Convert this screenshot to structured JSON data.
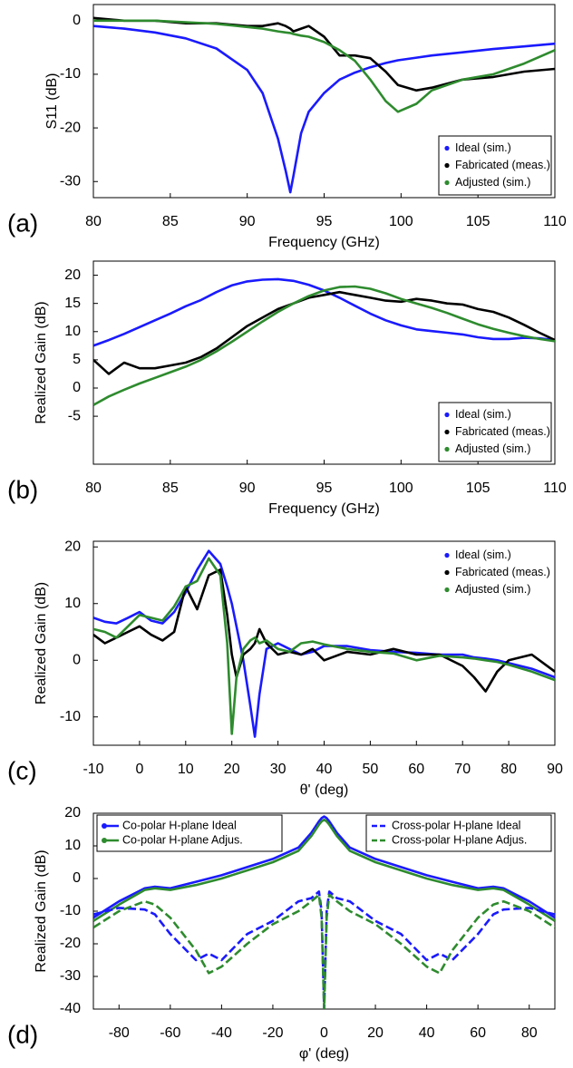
{
  "chart_data": [
    {
      "type": "line",
      "label": "(a)",
      "xlabel": "Frequency (GHz)",
      "ylabel": "S11 (dB)",
      "xlim": [
        80,
        110
      ],
      "xticks": [
        80,
        85,
        90,
        95,
        100,
        105,
        110
      ],
      "ylim": [
        -33,
        3
      ],
      "yticks": [
        0,
        -10,
        -20,
        -30
      ],
      "legend": "lower right",
      "legend_box": true,
      "x": [
        80,
        82,
        84,
        86,
        88,
        90,
        91,
        92,
        92.5,
        92.8,
        93,
        93.5,
        94,
        95,
        96,
        97,
        98,
        99,
        99.8,
        101,
        102,
        104,
        106,
        108,
        110
      ],
      "series": [
        {
          "name": "Ideal (sim.)",
          "color": "#1a1aff",
          "values": [
            -1,
            -1.5,
            -2.2,
            -3.3,
            -5.2,
            -9.2,
            -13.5,
            -22,
            -28,
            -32,
            -29,
            -21,
            -17,
            -13.5,
            -11,
            -9.7,
            -8.7,
            -7.9,
            -7.4,
            -6.9,
            -6.5,
            -5.9,
            -5.3,
            -4.8,
            -4.3
          ]
        },
        {
          "name": "Fabricated (meas.)",
          "color": "#000000",
          "values": [
            0.5,
            0,
            0,
            -0.5,
            -0.5,
            -1,
            -1,
            -0.5,
            -1,
            -1.5,
            -2,
            -1.5,
            -1,
            -3,
            -6.5,
            -6.5,
            -7,
            -9.5,
            -12,
            -13,
            -12.5,
            -11,
            -10.5,
            -9.5,
            -9
          ]
        },
        {
          "name": "Adjusted (sim.)",
          "color": "#2e8b2e",
          "values": [
            0,
            0,
            0,
            -0.3,
            -0.6,
            -1.2,
            -1.5,
            -2,
            -2.2,
            -2.3,
            -2.5,
            -2.8,
            -3,
            -4,
            -5.5,
            -7.5,
            -11,
            -15,
            -17,
            -15.5,
            -13,
            -11,
            -10,
            -8,
            -5.5
          ]
        }
      ]
    },
    {
      "type": "line",
      "label": "(b)",
      "xlabel": "Frequency (GHz)",
      "ylabel": "Realized Gain (dB)",
      "xlim": [
        80,
        110
      ],
      "xticks": [
        80,
        85,
        90,
        95,
        100,
        105,
        110
      ],
      "ylim": [
        -13.5,
        22.5
      ],
      "yticks": [
        20,
        15,
        10,
        5,
        0,
        -5
      ],
      "legend": "lower right",
      "legend_box": true,
      "x": [
        80,
        81,
        82,
        83,
        84,
        85,
        86,
        87,
        88,
        89,
        90,
        91,
        92,
        93,
        94,
        95,
        96,
        97,
        98,
        99,
        100,
        101,
        102,
        103,
        104,
        105,
        106,
        107,
        108,
        109,
        110
      ],
      "series": [
        {
          "name": "Ideal (sim.)",
          "color": "#1a1aff",
          "values": [
            7.5,
            8.5,
            9.6,
            10.8,
            12,
            13.2,
            14.5,
            15.6,
            17,
            18.2,
            18.9,
            19.2,
            19.3,
            19,
            18.3,
            17.3,
            16,
            14.6,
            13.2,
            12,
            11.1,
            10.4,
            10.1,
            9.8,
            9.5,
            9,
            8.7,
            8.7,
            8.9,
            8.8,
            8.5
          ]
        },
        {
          "name": "Fabricated (meas.)",
          "color": "#000000",
          "values": [
            5,
            2.5,
            4.5,
            3.5,
            3.5,
            4,
            4.5,
            5.5,
            7,
            9,
            11,
            12.5,
            14,
            15,
            16,
            16.5,
            17,
            16.5,
            16,
            15.5,
            15.3,
            15.8,
            15.5,
            15,
            14.8,
            14,
            13.5,
            12.5,
            11.2,
            9.8,
            8.5
          ]
        },
        {
          "name": "Adjusted (sim.)",
          "color": "#2e8b2e",
          "values": [
            -3,
            -1.5,
            -0.3,
            0.8,
            1.8,
            2.8,
            3.8,
            5,
            6.5,
            8.2,
            10,
            11.8,
            13.5,
            15,
            16.3,
            17.3,
            17.9,
            18,
            17.6,
            16.8,
            15.8,
            15,
            14.2,
            13.3,
            12.3,
            11.3,
            10.5,
            9.8,
            9.2,
            8.7,
            8.3
          ]
        }
      ]
    },
    {
      "type": "line",
      "label": "(c)",
      "xlabel": "θ' (deg)",
      "ylabel": "Realized Gain (dB)",
      "xlim": [
        -10,
        90
      ],
      "xticks": [
        -10,
        0,
        10,
        20,
        30,
        40,
        50,
        60,
        70,
        80,
        90
      ],
      "ylim": [
        -15,
        21
      ],
      "yticks": [
        20,
        10,
        0,
        -10
      ],
      "legend": "upper right",
      "legend_box": false,
      "x": [
        -10,
        -7.5,
        -5,
        -2.5,
        0,
        2.5,
        5,
        7.5,
        10,
        12.5,
        15,
        17.5,
        19,
        20,
        21,
        22.5,
        24,
        25,
        26,
        27.5,
        30,
        32.5,
        35,
        37.5,
        40,
        45,
        50,
        55,
        60,
        65,
        70,
        72.5,
        75,
        77.5,
        80,
        85,
        90
      ],
      "series": [
        {
          "name": "Ideal (sim.)",
          "color": "#1a1aff",
          "values": [
            7.5,
            6.8,
            6.5,
            7.5,
            8.5,
            7,
            6.5,
            8.5,
            12,
            16,
            19.3,
            17,
            13,
            10,
            6,
            0,
            -8,
            -13.5,
            -6,
            2,
            3,
            2,
            1,
            1.5,
            2.5,
            2.5,
            1.8,
            1.5,
            1.3,
            1,
            1,
            0.5,
            0.3,
            0,
            -0.5,
            -1.5,
            -3
          ]
        },
        {
          "name": "Fabricated (meas.)",
          "color": "#000000",
          "values": [
            4.5,
            3,
            4,
            5,
            6,
            4.5,
            3.5,
            5,
            13,
            9,
            15,
            16,
            8,
            1,
            -3,
            1,
            2,
            3,
            5.5,
            3,
            1,
            1.5,
            1,
            2,
            0,
            1.5,
            1,
            2,
            1,
            1,
            -1,
            -3,
            -5.5,
            -2,
            0,
            1,
            -2
          ]
        },
        {
          "name": "Adjusted (sim.)",
          "color": "#2e8b2e",
          "values": [
            5.5,
            5,
            4,
            6,
            8,
            7.5,
            7,
            9.5,
            13,
            14,
            18,
            15,
            3,
            -13,
            -3,
            2,
            3.5,
            4,
            3,
            3.5,
            2,
            1.5,
            3,
            3.3,
            2.8,
            2,
            1.5,
            1.2,
            0,
            0.8,
            0.5,
            0.3,
            0,
            -0.3,
            -0.8,
            -2,
            -3.5
          ]
        }
      ]
    },
    {
      "type": "line",
      "label": "(d)",
      "xlabel": "φ' (deg)",
      "ylabel": "Realized Gain (dB)",
      "xlim": [
        -90,
        90
      ],
      "xticks": [
        -80,
        -60,
        -40,
        -20,
        0,
        20,
        40,
        60,
        80
      ],
      "ylim": [
        -40,
        20
      ],
      "yticks": [
        20,
        10,
        0,
        -10,
        -20,
        -30,
        -40
      ],
      "legend_box": true,
      "x": [
        -90,
        -80,
        -70,
        -66,
        -60,
        -50,
        -45,
        -40,
        -30,
        -20,
        -10,
        -5,
        -2,
        -1,
        0,
        1,
        2,
        5,
        10,
        20,
        30,
        40,
        45,
        50,
        60,
        66,
        70,
        80,
        90
      ],
      "series": [
        {
          "name": "Co-polar H-plane Ideal",
          "color": "#1a1aff",
          "dash": false,
          "legend": "upper left",
          "values": [
            -12,
            -7,
            -3,
            -2.5,
            -3,
            -1,
            0,
            1,
            3.5,
            6,
            9.5,
            14,
            17.5,
            18.5,
            19,
            18.5,
            17.5,
            14,
            9.5,
            6,
            3.5,
            1,
            0,
            -1,
            -3,
            -2.5,
            -3,
            -7,
            -12
          ]
        },
        {
          "name": "Co-polar H-plane Adjus.",
          "color": "#2e8b2e",
          "dash": false,
          "legend": "upper left",
          "values": [
            -13,
            -8,
            -3.5,
            -3,
            -3.5,
            -2,
            -1,
            0,
            2.5,
            5,
            8.5,
            13,
            16.5,
            17.5,
            18,
            17.5,
            16.5,
            13,
            8.5,
            5,
            2.5,
            0,
            -1,
            -2,
            -3.5,
            -3,
            -3.5,
            -8,
            -13
          ]
        },
        {
          "name": "Cross-polar H-plane Ideal",
          "color": "#1a1aff",
          "dash": true,
          "legend": "upper right",
          "values": [
            -11,
            -9,
            -9.5,
            -11,
            -17,
            -25,
            -23,
            -25,
            -17,
            -13,
            -7,
            -6,
            -4,
            -10,
            -40,
            -10,
            -4,
            -6,
            -7,
            -13,
            -17,
            -25,
            -23,
            -25,
            -17,
            -11,
            -9.5,
            -9,
            -11
          ]
        },
        {
          "name": "Cross-polar H-plane Adjus.",
          "color": "#2e8b2e",
          "dash": true,
          "legend": "upper right",
          "values": [
            -15,
            -10,
            -7,
            -8,
            -12,
            -22,
            -29,
            -27,
            -20,
            -14,
            -10,
            -7,
            -5,
            -12,
            -40,
            -12,
            -5,
            -7,
            -10,
            -14,
            -20,
            -27,
            -29,
            -22,
            -12,
            -8,
            -7,
            -10,
            -15
          ]
        }
      ]
    }
  ]
}
